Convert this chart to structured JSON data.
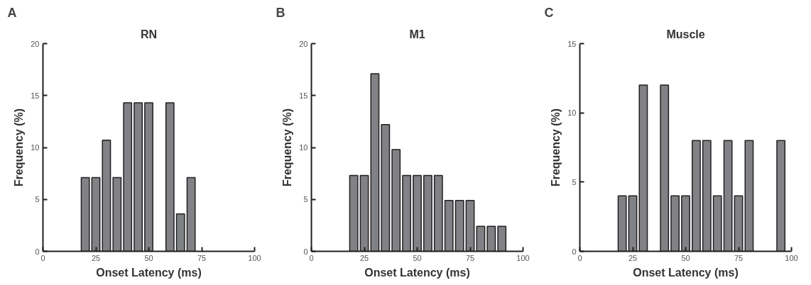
{
  "chart_data": [
    {
      "type": "bar",
      "title": "RN",
      "xlabel": "Onset Latency (ms)",
      "ylabel": "Frequency (%)",
      "annotations": [
        "A"
      ],
      "x": [
        20,
        25,
        30,
        35,
        40,
        45,
        50,
        60,
        65,
        70
      ],
      "values": [
        7.1,
        7.1,
        10.7,
        7.1,
        14.3,
        14.3,
        14.3,
        14.3,
        3.6,
        7.1
      ],
      "color": "#808285",
      "xlim": [
        0,
        100
      ],
      "xticks": [
        0,
        25,
        50,
        75,
        100
      ],
      "ylim": [
        0,
        20
      ],
      "yticks": [
        0,
        5,
        10,
        15,
        20
      ],
      "grid": false
    },
    {
      "type": "bar",
      "title": "M1",
      "xlabel": "Onset Latency (ms)",
      "ylabel": "Frequency (%)",
      "annotations": [
        "B"
      ],
      "x": [
        20,
        25,
        30,
        35,
        40,
        45,
        50,
        55,
        60,
        65,
        70,
        75,
        80,
        85,
        90
      ],
      "values": [
        7.3,
        7.3,
        17.1,
        12.2,
        9.8,
        7.3,
        7.3,
        7.3,
        7.3,
        4.9,
        4.9,
        4.9,
        2.4,
        2.4,
        2.4
      ],
      "color": "#808285",
      "xlim": [
        0,
        100
      ],
      "xticks": [
        0,
        25,
        50,
        75,
        100
      ],
      "ylim": [
        0,
        20
      ],
      "yticks": [
        0,
        5,
        10,
        15,
        20
      ],
      "grid": false
    },
    {
      "type": "bar",
      "title": "Muscle",
      "xlabel": "Onset Latency (ms)",
      "ylabel": "Frequency (%)",
      "annotations": [
        "C"
      ],
      "x": [
        20,
        25,
        30,
        40,
        45,
        50,
        55,
        60,
        65,
        70,
        75,
        80,
        95
      ],
      "values": [
        4,
        4,
        12,
        12,
        4,
        4,
        8,
        8,
        4,
        8,
        4,
        8,
        8
      ],
      "color": "#808285",
      "xlim": [
        0,
        100
      ],
      "xticks": [
        0,
        25,
        50,
        75,
        100
      ],
      "ylim": [
        0,
        15
      ],
      "yticks": [
        0,
        5,
        10,
        15
      ],
      "grid": false
    }
  ]
}
